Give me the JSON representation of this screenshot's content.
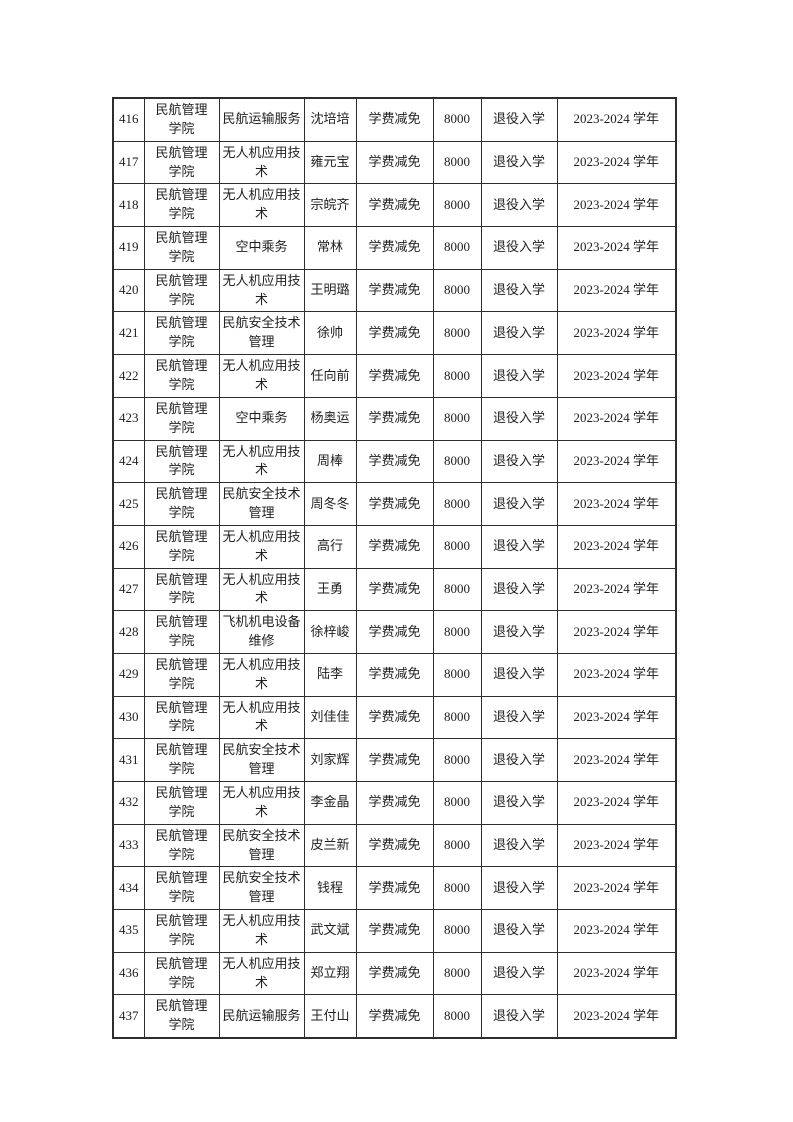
{
  "page": {
    "background_color": "#ffffff",
    "text_color": "#1f1f1f",
    "border_color": "#2e2e2e"
  },
  "table": {
    "rows": [
      {
        "no": "416",
        "college": "民航管理\n学院",
        "major": "民航运输服务",
        "name": "沈培培",
        "item": "学费减免",
        "amount": "8000",
        "category": "退役入学",
        "year": "2023-2024 学年"
      },
      {
        "no": "417",
        "college": "民航管理\n学院",
        "major": "无人机应用技\n术",
        "name": "雍元宝",
        "item": "学费减免",
        "amount": "8000",
        "category": "退役入学",
        "year": "2023-2024 学年"
      },
      {
        "no": "418",
        "college": "民航管理\n学院",
        "major": "无人机应用技\n术",
        "name": "宗皖齐",
        "item": "学费减免",
        "amount": "8000",
        "category": "退役入学",
        "year": "2023-2024 学年"
      },
      {
        "no": "419",
        "college": "民航管理\n学院",
        "major": "空中乘务",
        "name": "常林",
        "item": "学费减免",
        "amount": "8000",
        "category": "退役入学",
        "year": "2023-2024 学年"
      },
      {
        "no": "420",
        "college": "民航管理\n学院",
        "major": "无人机应用技\n术",
        "name": "王明璐",
        "item": "学费减免",
        "amount": "8000",
        "category": "退役入学",
        "year": "2023-2024 学年"
      },
      {
        "no": "421",
        "college": "民航管理\n学院",
        "major": "民航安全技术\n管理",
        "name": "徐帅",
        "item": "学费减免",
        "amount": "8000",
        "category": "退役入学",
        "year": "2023-2024 学年"
      },
      {
        "no": "422",
        "college": "民航管理\n学院",
        "major": "无人机应用技\n术",
        "name": "任向前",
        "item": "学费减免",
        "amount": "8000",
        "category": "退役入学",
        "year": "2023-2024 学年"
      },
      {
        "no": "423",
        "college": "民航管理\n学院",
        "major": "空中乘务",
        "name": "杨奥运",
        "item": "学费减免",
        "amount": "8000",
        "category": "退役入学",
        "year": "2023-2024 学年"
      },
      {
        "no": "424",
        "college": "民航管理\n学院",
        "major": "无人机应用技\n术",
        "name": "周棒",
        "item": "学费减免",
        "amount": "8000",
        "category": "退役入学",
        "year": "2023-2024 学年"
      },
      {
        "no": "425",
        "college": "民航管理\n学院",
        "major": "民航安全技术\n管理",
        "name": "周冬冬",
        "item": "学费减免",
        "amount": "8000",
        "category": "退役入学",
        "year": "2023-2024 学年"
      },
      {
        "no": "426",
        "college": "民航管理\n学院",
        "major": "无人机应用技\n术",
        "name": "高行",
        "item": "学费减免",
        "amount": "8000",
        "category": "退役入学",
        "year": "2023-2024 学年"
      },
      {
        "no": "427",
        "college": "民航管理\n学院",
        "major": "无人机应用技\n术",
        "name": "王勇",
        "item": "学费减免",
        "amount": "8000",
        "category": "退役入学",
        "year": "2023-2024 学年"
      },
      {
        "no": "428",
        "college": "民航管理\n学院",
        "major": "飞机机电设备\n维修",
        "name": "徐梓峻",
        "item": "学费减免",
        "amount": "8000",
        "category": "退役入学",
        "year": "2023-2024 学年"
      },
      {
        "no": "429",
        "college": "民航管理\n学院",
        "major": "无人机应用技\n术",
        "name": "陆李",
        "item": "学费减免",
        "amount": "8000",
        "category": "退役入学",
        "year": "2023-2024 学年"
      },
      {
        "no": "430",
        "college": "民航管理\n学院",
        "major": "无人机应用技\n术",
        "name": "刘佳佳",
        "item": "学费减免",
        "amount": "8000",
        "category": "退役入学",
        "year": "2023-2024 学年"
      },
      {
        "no": "431",
        "college": "民航管理\n学院",
        "major": "民航安全技术\n管理",
        "name": "刘家辉",
        "item": "学费减免",
        "amount": "8000",
        "category": "退役入学",
        "year": "2023-2024 学年"
      },
      {
        "no": "432",
        "college": "民航管理\n学院",
        "major": "无人机应用技\n术",
        "name": "李金晶",
        "item": "学费减免",
        "amount": "8000",
        "category": "退役入学",
        "year": "2023-2024 学年"
      },
      {
        "no": "433",
        "college": "民航管理\n学院",
        "major": "民航安全技术\n管理",
        "name": "皮兰新",
        "item": "学费减免",
        "amount": "8000",
        "category": "退役入学",
        "year": "2023-2024 学年"
      },
      {
        "no": "434",
        "college": "民航管理\n学院",
        "major": "民航安全技术\n管理",
        "name": "钱程",
        "item": "学费减免",
        "amount": "8000",
        "category": "退役入学",
        "year": "2023-2024 学年"
      },
      {
        "no": "435",
        "college": "民航管理\n学院",
        "major": "无人机应用技\n术",
        "name": "武文斌",
        "item": "学费减免",
        "amount": "8000",
        "category": "退役入学",
        "year": "2023-2024 学年"
      },
      {
        "no": "436",
        "college": "民航管理\n学院",
        "major": "无人机应用技\n术",
        "name": "郑立翔",
        "item": "学费减免",
        "amount": "8000",
        "category": "退役入学",
        "year": "2023-2024 学年"
      },
      {
        "no": "437",
        "college": "民航管理\n学院",
        "major": "民航运输服务",
        "name": "王付山",
        "item": "学费减免",
        "amount": "8000",
        "category": "退役入学",
        "year": "2023-2024 学年"
      }
    ]
  }
}
